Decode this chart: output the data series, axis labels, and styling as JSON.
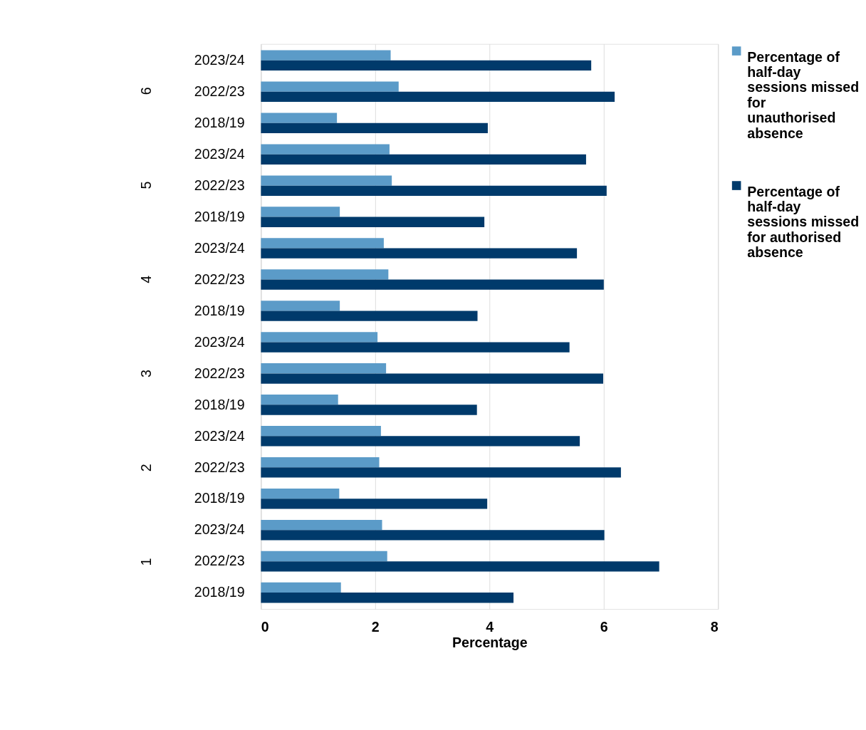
{
  "chart_data": {
    "type": "bar",
    "orientation": "horizontal",
    "xlabel": "Percentage",
    "categories": [
      "2023/24",
      "2022/23",
      "2018/19",
      "2023/24",
      "2022/23",
      "2018/19",
      "2023/24",
      "2022/23",
      "2018/19",
      "2023/24",
      "2022/23",
      "2018/19",
      "2023/24",
      "2022/23",
      "2018/19",
      "2023/24",
      "2022/23",
      "2018/19"
    ],
    "annotations": [
      "6",
      "5",
      "4",
      "3",
      "2",
      "1"
    ],
    "series": [
      {
        "name": "Percentage of half-day sessions missed for unauthorised absence",
        "color": "#5b9bc8",
        "values": [
          2.27,
          2.41,
          1.33,
          2.25,
          2.29,
          1.38,
          2.15,
          2.23,
          1.38,
          2.04,
          2.19,
          1.35,
          2.1,
          2.07,
          1.37,
          2.12,
          2.21,
          1.4
        ]
      },
      {
        "name": "Percentage of half-day sessions missed for authorised absence",
        "color": "#003a6b",
        "values": [
          5.78,
          6.19,
          3.97,
          5.69,
          6.05,
          3.91,
          5.53,
          6.0,
          3.79,
          5.4,
          5.99,
          3.78,
          5.58,
          6.3,
          3.96,
          6.01,
          6.97,
          4.42
        ]
      }
    ],
    "xlim": [
      0,
      8
    ],
    "xticks": [
      0,
      2,
      4,
      6,
      8
    ],
    "grid": "x",
    "legend": "right"
  }
}
